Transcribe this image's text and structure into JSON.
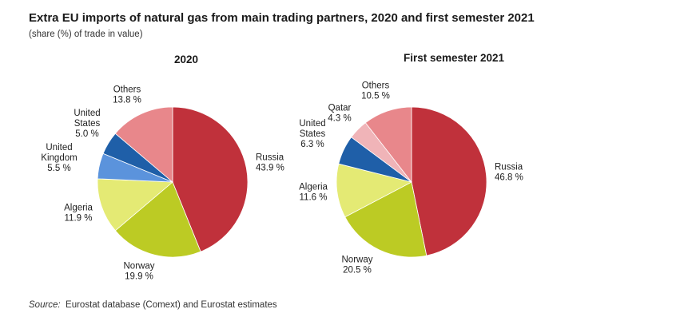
{
  "title": "Extra EU imports of natural gas from main trading partners, 2020 and first semester 2021",
  "subtitle": "(share (%) of trade in value)",
  "source_label": "Source:",
  "source_text": "Eurostat database (Comext) and Eurostat estimates",
  "colors": {
    "Russia": "#c0313b",
    "Norway": "#bccb24",
    "Algeria": "#e4ea74",
    "United Kingdom": "#5b93dc",
    "United States": "#1f5fa8",
    "Qatar": "#f0b4b8",
    "Others": "#e8878b"
  },
  "chart_data": [
    {
      "type": "pie",
      "title": "2020",
      "slices": [
        {
          "name": "Russia",
          "label_lines": [
            "Russia"
          ],
          "value": 43.9,
          "value_label": "43.9 %"
        },
        {
          "name": "Norway",
          "label_lines": [
            "Norway"
          ],
          "value": 19.9,
          "value_label": "19.9 %"
        },
        {
          "name": "Algeria",
          "label_lines": [
            "Algeria"
          ],
          "value": 11.9,
          "value_label": "11.9 %"
        },
        {
          "name": "United Kingdom",
          "label_lines": [
            "United",
            "Kingdom"
          ],
          "value": 5.5,
          "value_label": "5.5 %"
        },
        {
          "name": "United States",
          "label_lines": [
            "United",
            "States"
          ],
          "value": 5.0,
          "value_label": "5.0 %"
        },
        {
          "name": "Others",
          "label_lines": [
            "Others"
          ],
          "value": 13.8,
          "value_label": "13.8 %"
        }
      ]
    },
    {
      "type": "pie",
      "title": "First semester 2021",
      "slices": [
        {
          "name": "Russia",
          "label_lines": [
            "Russia"
          ],
          "value": 46.8,
          "value_label": "46.8 %"
        },
        {
          "name": "Norway",
          "label_lines": [
            "Norway"
          ],
          "value": 20.5,
          "value_label": "20.5 %"
        },
        {
          "name": "Algeria",
          "label_lines": [
            "Algeria"
          ],
          "value": 11.6,
          "value_label": "11.6 %"
        },
        {
          "name": "United States",
          "label_lines": [
            "United",
            "States"
          ],
          "value": 6.3,
          "value_label": "6.3 %"
        },
        {
          "name": "Qatar",
          "label_lines": [
            "Qatar"
          ],
          "value": 4.3,
          "value_label": "4.3 %"
        },
        {
          "name": "Others",
          "label_lines": [
            "Others"
          ],
          "value": 10.5,
          "value_label": "10.5 %"
        }
      ]
    }
  ]
}
